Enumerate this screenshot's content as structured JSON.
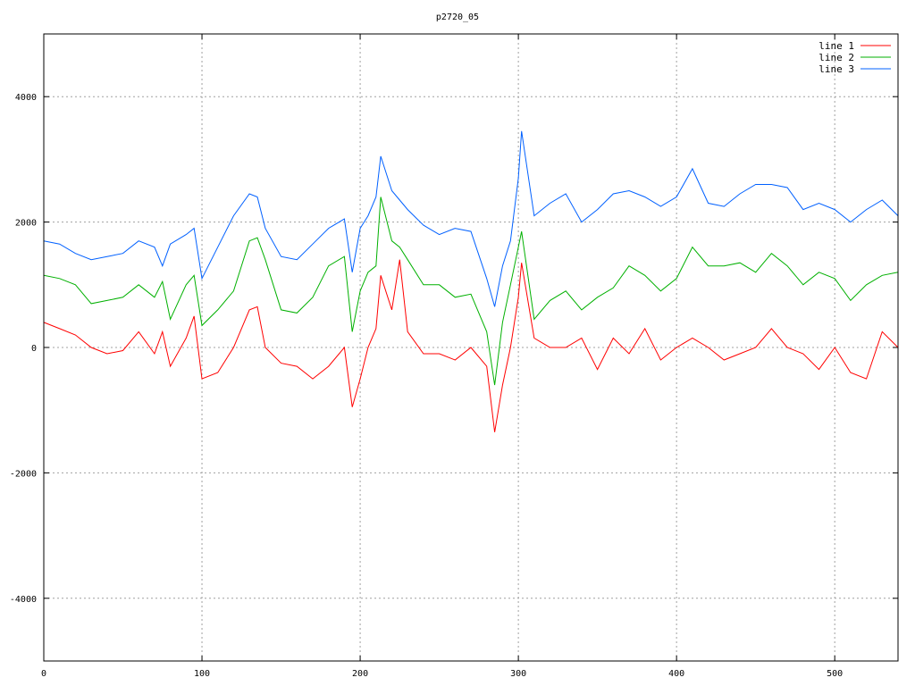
{
  "chart_data": {
    "type": "line",
    "title": "p2720_05",
    "xlabel": "",
    "ylabel": "",
    "xlim": [
      0,
      540
    ],
    "ylim": [
      -5000,
      5000
    ],
    "xticks": [
      0,
      100,
      200,
      300,
      400,
      500
    ],
    "yticks": [
      -4000,
      -2000,
      0,
      2000,
      4000
    ],
    "ytick_labels": [
      "-4000",
      "-2000",
      "0",
      "2000",
      "4000"
    ],
    "grid": true,
    "legend_position": "top-right",
    "x": [
      0,
      10,
      20,
      30,
      40,
      50,
      60,
      70,
      75,
      80,
      90,
      95,
      100,
      110,
      120,
      130,
      135,
      140,
      150,
      160,
      170,
      180,
      190,
      195,
      200,
      205,
      210,
      213,
      220,
      225,
      230,
      240,
      250,
      260,
      270,
      280,
      285,
      290,
      295,
      300,
      302,
      310,
      320,
      330,
      340,
      350,
      360,
      370,
      380,
      390,
      400,
      410,
      420,
      430,
      440,
      450,
      460,
      470,
      480,
      490,
      500,
      510,
      520,
      530,
      540
    ],
    "series": [
      {
        "name": "line 1",
        "color": "#ff0000",
        "values": [
          400,
          300,
          200,
          0,
          -100,
          -50,
          250,
          -100,
          250,
          -300,
          150,
          500,
          -500,
          -400,
          0,
          600,
          650,
          0,
          -250,
          -300,
          -500,
          -300,
          0,
          -950,
          -500,
          0,
          300,
          1150,
          600,
          1400,
          250,
          -100,
          -100,
          -200,
          0,
          -300,
          -1350,
          -600,
          0,
          800,
          1350,
          150,
          0,
          0,
          150,
          -350,
          150,
          -100,
          300,
          -200,
          0,
          150,
          0,
          -200,
          -100,
          0,
          300,
          0,
          -100,
          -350,
          0,
          -400,
          -500,
          250,
          0
        ]
      },
      {
        "name": "line 2",
        "color": "#00b000",
        "values": [
          1150,
          1100,
          1000,
          700,
          750,
          800,
          1000,
          800,
          1050,
          450,
          1000,
          1150,
          350,
          600,
          900,
          1700,
          1750,
          1400,
          600,
          550,
          800,
          1300,
          1450,
          250,
          900,
          1200,
          1300,
          2400,
          1700,
          1600,
          1400,
          1000,
          1000,
          800,
          850,
          250,
          -600,
          400,
          1000,
          1600,
          1850,
          450,
          750,
          900,
          600,
          800,
          950,
          1300,
          1150,
          900,
          1100,
          1600,
          1300,
          1300,
          1350,
          1200,
          1500,
          1300,
          1000,
          1200,
          1100,
          750,
          1000,
          1150,
          1200
        ]
      },
      {
        "name": "line 3",
        "color": "#0060ff",
        "values": [
          1700,
          1650,
          1500,
          1400,
          1450,
          1500,
          1700,
          1600,
          1300,
          1650,
          1800,
          1900,
          1100,
          1600,
          2100,
          2450,
          2400,
          1900,
          1450,
          1400,
          1650,
          1900,
          2050,
          1200,
          1900,
          2100,
          2400,
          3050,
          2500,
          2350,
          2200,
          1950,
          1800,
          1900,
          1850,
          1100,
          650,
          1300,
          1700,
          2700,
          3450,
          2100,
          2300,
          2450,
          2000,
          2200,
          2450,
          2500,
          2400,
          2250,
          2400,
          2850,
          2300,
          2250,
          2450,
          2600,
          2600,
          2550,
          2200,
          2300,
          2200,
          2000,
          2200,
          2350,
          2100
        ]
      }
    ]
  }
}
